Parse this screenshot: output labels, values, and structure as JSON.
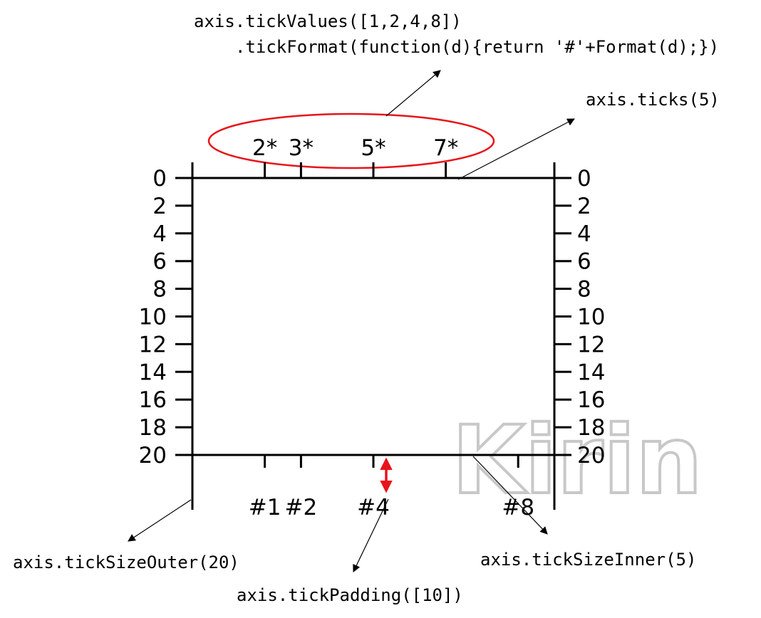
{
  "annotations": {
    "tick_values": ".tickValues([1,2,4,8])",
    "tick_values_prefix": "axis",
    "tick_format": ".tickFormat(function(d){return '#'+Format(d);})",
    "ticks": "axis.ticks(5)",
    "tick_size_outer": "axis.tickSizeOuter(20)",
    "tick_size_inner": "axis.tickSizeInner(5)",
    "tick_padding": "axis.tickPadding([10])"
  },
  "top_axis": {
    "labels": [
      "2*",
      "3*",
      "5*",
      "7*"
    ],
    "values": [
      2,
      3,
      5,
      7
    ],
    "domain": [
      0,
      10
    ]
  },
  "bottom_axis": {
    "labels": [
      "#1",
      "#2",
      "#4",
      "#8"
    ],
    "values": [
      1,
      2,
      4,
      8
    ],
    "domain": [
      -1,
      9
    ]
  },
  "left_axis": {
    "labels": [
      "0",
      "2",
      "4",
      "6",
      "8",
      "10",
      "12",
      "14",
      "16",
      "18",
      "20"
    ],
    "domain": [
      0,
      20
    ]
  },
  "right_axis": {
    "labels": [
      "0",
      "2",
      "4",
      "6",
      "8",
      "10",
      "12",
      "14",
      "16",
      "18",
      "20"
    ],
    "domain": [
      0,
      20
    ]
  },
  "watermark": "Kirin",
  "colors": {
    "highlight": "#e8141a",
    "ink": "#000000",
    "watermark": "#c8c8c8"
  }
}
